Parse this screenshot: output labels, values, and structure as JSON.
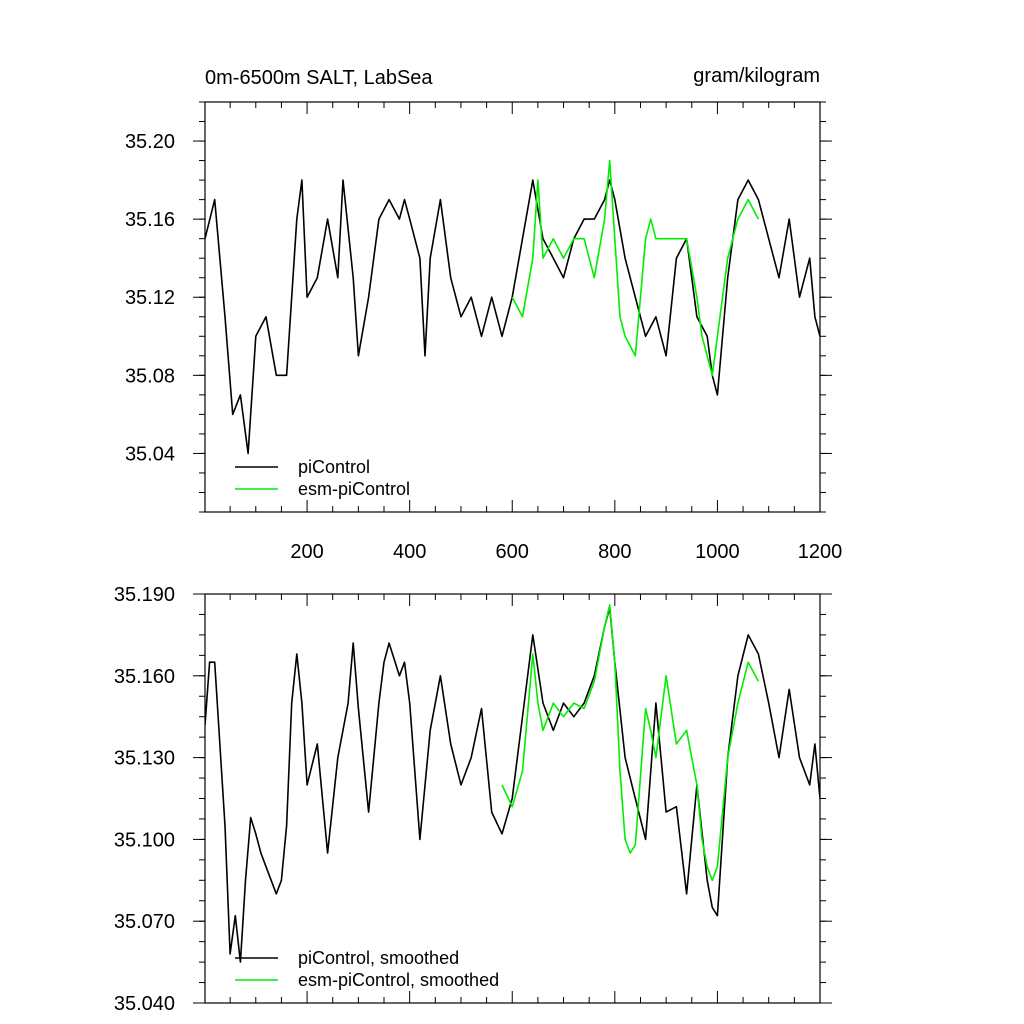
{
  "figure": {
    "title_left": "0m-6500m SALT, LabSea",
    "title_right": "gram/kilogram"
  },
  "colors": {
    "piControl": "#000000",
    "esm_piControl": "#00ee00"
  },
  "chart_data": [
    {
      "type": "line",
      "title": "0m-6500m SALT, LabSea",
      "units": "gram/kilogram",
      "xlim": [
        1,
        1200
      ],
      "ylim": [
        35.01,
        35.22
      ],
      "x_ticks": [
        200,
        400,
        600,
        800,
        1000,
        1200
      ],
      "x_tick_labels": [
        "200",
        "400",
        "600",
        "800",
        "1000",
        "1200"
      ],
      "y_ticks": [
        35.04,
        35.08,
        35.12,
        35.16,
        35.2
      ],
      "y_tick_labels": [
        "35.04",
        "35.08",
        "35.12",
        "35.16",
        "35.20"
      ],
      "legend": {
        "placement": "bottom-left",
        "entries": [
          "piControl",
          "esm-piControl"
        ]
      },
      "grid": false,
      "series": [
        {
          "name": "piControl",
          "color": "#000000",
          "x": [
            1,
            20,
            40,
            55,
            70,
            85,
            100,
            120,
            140,
            160,
            170,
            180,
            190,
            200,
            220,
            240,
            260,
            270,
            290,
            300,
            320,
            340,
            360,
            380,
            390,
            400,
            420,
            430,
            440,
            460,
            480,
            500,
            520,
            540,
            560,
            580,
            600,
            620,
            640,
            660,
            680,
            700,
            720,
            740,
            760,
            780,
            790,
            800,
            820,
            840,
            860,
            880,
            900,
            920,
            940,
            960,
            980,
            990,
            1000,
            1020,
            1040,
            1060,
            1080,
            1100,
            1120,
            1140,
            1160,
            1180,
            1190,
            1200
          ],
          "y": [
            35.15,
            35.17,
            35.11,
            35.06,
            35.07,
            35.04,
            35.1,
            35.11,
            35.08,
            35.08,
            35.12,
            35.16,
            35.18,
            35.12,
            35.13,
            35.16,
            35.13,
            35.18,
            35.13,
            35.09,
            35.12,
            35.16,
            35.17,
            35.16,
            35.17,
            35.16,
            35.14,
            35.09,
            35.14,
            35.17,
            35.13,
            35.11,
            35.12,
            35.1,
            35.12,
            35.1,
            35.12,
            35.15,
            35.18,
            35.15,
            35.14,
            35.13,
            35.15,
            35.16,
            35.16,
            35.17,
            35.18,
            35.17,
            35.14,
            35.12,
            35.1,
            35.11,
            35.09,
            35.14,
            35.15,
            35.11,
            35.1,
            35.08,
            35.07,
            35.13,
            35.17,
            35.18,
            35.17,
            35.15,
            35.13,
            35.16,
            35.12,
            35.14,
            35.11,
            35.1
          ]
        },
        {
          "name": "esm-piControl",
          "color": "#00ee00",
          "x": [
            600,
            620,
            640,
            650,
            660,
            680,
            700,
            720,
            740,
            760,
            780,
            790,
            800,
            810,
            820,
            840,
            860,
            870,
            880,
            900,
            920,
            940,
            960,
            970,
            980,
            990,
            1000,
            1020,
            1040,
            1060,
            1080
          ],
          "y": [
            35.12,
            35.11,
            35.14,
            35.18,
            35.14,
            35.15,
            35.14,
            35.15,
            35.15,
            35.13,
            35.16,
            35.19,
            35.15,
            35.11,
            35.1,
            35.09,
            35.15,
            35.16,
            35.15,
            35.15,
            35.15,
            35.15,
            35.12,
            35.1,
            35.09,
            35.08,
            35.1,
            35.14,
            35.16,
            35.17,
            35.16
          ]
        }
      ]
    },
    {
      "type": "line",
      "xlim": [
        1,
        1200
      ],
      "ylim": [
        35.04,
        35.19
      ],
      "x_ticks": [
        200,
        400,
        600,
        800,
        1000,
        1200
      ],
      "y_ticks": [
        35.04,
        35.07,
        35.1,
        35.13,
        35.16,
        35.19
      ],
      "y_tick_labels": [
        "35.040",
        "35.070",
        "35.100",
        "35.130",
        "35.160",
        "35.190"
      ],
      "legend": {
        "placement": "bottom-left",
        "entries": [
          "piControl, smoothed",
          "esm-piControl, smoothed"
        ]
      },
      "grid": false,
      "series": [
        {
          "name": "piControl, smoothed",
          "color": "#000000",
          "x": [
            1,
            10,
            20,
            40,
            50,
            60,
            70,
            80,
            90,
            100,
            110,
            120,
            140,
            150,
            160,
            170,
            180,
            190,
            200,
            220,
            240,
            260,
            280,
            290,
            300,
            320,
            340,
            350,
            360,
            380,
            390,
            400,
            420,
            440,
            460,
            480,
            500,
            520,
            540,
            560,
            580,
            600,
            620,
            640,
            660,
            680,
            700,
            720,
            740,
            760,
            780,
            790,
            800,
            820,
            840,
            860,
            880,
            900,
            920,
            940,
            960,
            980,
            990,
            1000,
            1020,
            1040,
            1060,
            1080,
            1100,
            1120,
            1140,
            1160,
            1180,
            1190,
            1200
          ],
          "y": [
            35.142,
            35.165,
            35.165,
            35.105,
            35.058,
            35.072,
            35.055,
            35.085,
            35.108,
            35.102,
            35.095,
            35.09,
            35.08,
            35.085,
            35.105,
            35.15,
            35.168,
            35.15,
            35.12,
            35.135,
            35.095,
            35.13,
            35.15,
            35.172,
            35.148,
            35.11,
            35.15,
            35.165,
            35.172,
            35.16,
            35.165,
            35.15,
            35.1,
            35.14,
            35.16,
            35.135,
            35.12,
            35.13,
            35.148,
            35.11,
            35.102,
            35.115,
            35.145,
            35.175,
            35.15,
            35.14,
            35.15,
            35.145,
            35.15,
            35.16,
            35.178,
            35.185,
            35.165,
            35.13,
            35.115,
            35.1,
            35.15,
            35.11,
            35.112,
            35.08,
            35.12,
            35.085,
            35.075,
            35.072,
            35.13,
            35.16,
            35.175,
            35.168,
            35.15,
            35.13,
            35.155,
            35.13,
            35.12,
            35.135,
            35.115
          ]
        },
        {
          "name": "esm-piControl, smoothed",
          "color": "#00ee00",
          "x": [
            580,
            600,
            620,
            640,
            650,
            660,
            680,
            700,
            720,
            740,
            760,
            780,
            790,
            800,
            810,
            820,
            830,
            840,
            860,
            870,
            880,
            900,
            920,
            940,
            960,
            970,
            980,
            990,
            1000,
            1020,
            1040,
            1060,
            1080
          ],
          "y": [
            35.12,
            35.112,
            35.125,
            35.168,
            35.15,
            35.14,
            35.15,
            35.145,
            35.15,
            35.148,
            35.158,
            35.178,
            35.186,
            35.165,
            35.125,
            35.1,
            35.095,
            35.098,
            35.148,
            35.14,
            35.13,
            35.16,
            35.135,
            35.14,
            35.12,
            35.1,
            35.09,
            35.085,
            35.09,
            35.13,
            35.15,
            35.165,
            35.158
          ]
        }
      ]
    }
  ]
}
